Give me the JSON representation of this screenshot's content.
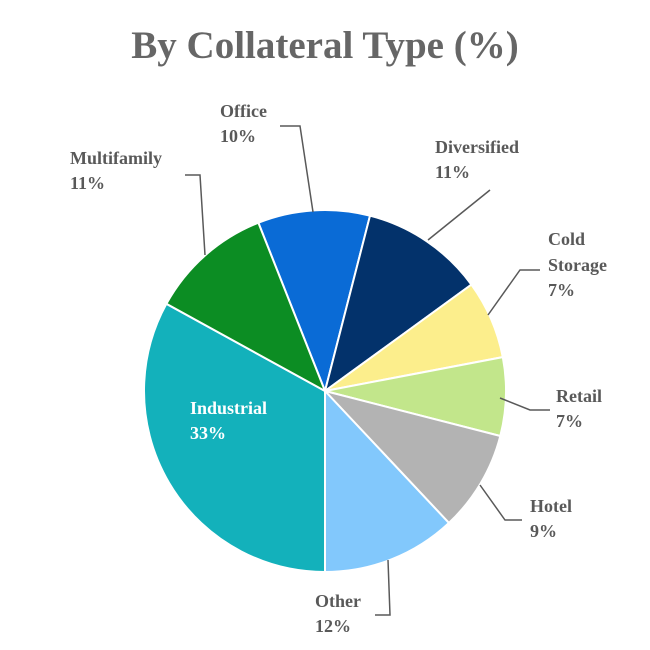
{
  "chart_data": {
    "type": "pie",
    "title": "By Collateral Type (%)",
    "categories": [
      "Office",
      "Diversified",
      "Cold Storage",
      "Retail",
      "Hotel",
      "Other",
      "Industrial",
      "Multifamily"
    ],
    "values": [
      10,
      11,
      7,
      7,
      9,
      12,
      33,
      11
    ],
    "value_labels": [
      "10%",
      "11%",
      "7%",
      "7%",
      "9%",
      "12%",
      "33%",
      "11%"
    ],
    "colors": [
      "#0a6bd6",
      "#03326b",
      "#fcee8c",
      "#c2e68b",
      "#b3b3b3",
      "#82c8fc",
      "#13b1bb",
      "#0c8d23"
    ]
  }
}
